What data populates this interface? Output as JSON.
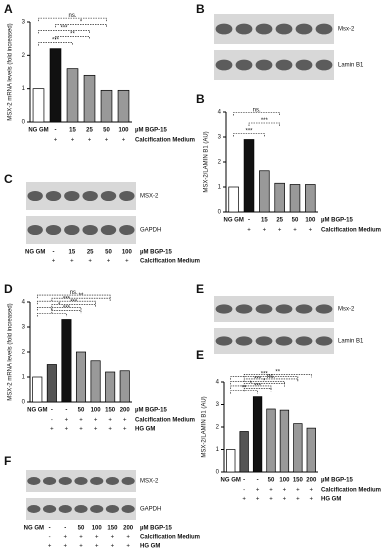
{
  "chart_data": [
    {
      "type": "bar",
      "panel": "A",
      "y_label": "MSX-2 mRNA levels (fold increased)",
      "category_label": "µM BGP-15",
      "categories": [
        "NG GM",
        "-",
        "15",
        "25",
        "50",
        "100"
      ],
      "values": [
        1,
        2.2,
        1.6,
        1.4,
        0.95,
        0.95
      ],
      "colors": [
        "#ffffff",
        "#111111",
        "#999999",
        "#999999",
        "#999999",
        "#999999"
      ],
      "ylim": [
        0,
        3
      ],
      "yticks": [
        0,
        1,
        2,
        3
      ],
      "rows": [
        {
          "name": "Calcification Medium",
          "marks": [
            null,
            "+",
            "+",
            "+",
            "+",
            "+"
          ]
        }
      ],
      "annotations": [
        "***",
        "**",
        "***",
        "*",
        "ns."
      ]
    },
    {
      "type": "bar",
      "panel": "B",
      "y_label": "MSX-2/LAMIN B1 (AU)",
      "category_label": "µM BGP-15",
      "categories": [
        "NG GM",
        "-",
        "15",
        "25",
        "50",
        "100"
      ],
      "values": [
        1,
        2.9,
        1.65,
        1.15,
        1.1,
        1.1
      ],
      "colors": [
        "#ffffff",
        "#111111",
        "#999999",
        "#999999",
        "#999999",
        "#999999"
      ],
      "ylim": [
        0,
        4
      ],
      "yticks": [
        0,
        1,
        2,
        3,
        4
      ],
      "rows": [
        {
          "name": "Calcification Medium",
          "marks": [
            null,
            "+",
            "+",
            "+",
            "+",
            "+"
          ]
        }
      ],
      "annotations": [
        "***",
        "***",
        "ns."
      ]
    },
    {
      "type": "bar",
      "panel": "D",
      "y_label": "MSX-2 mRNA levels (fold increased)",
      "category_label": "µM BGP-15",
      "categories": [
        "NG GM",
        "-",
        "-",
        "50",
        "100",
        "150",
        "200"
      ],
      "values": [
        1,
        1.5,
        3.3,
        2.0,
        1.65,
        1.2,
        1.25
      ],
      "colors": [
        "#ffffff",
        "#555555",
        "#111111",
        "#999999",
        "#999999",
        "#999999",
        "#999999"
      ],
      "ylim": [
        0,
        4
      ],
      "yticks": [
        0,
        1,
        2,
        3,
        4
      ],
      "rows": [
        {
          "name": "Calcification Medium",
          "marks": [
            null,
            "-",
            "+",
            "+",
            "+",
            "+",
            "+"
          ]
        },
        {
          "name": "HG GM",
          "marks": [
            null,
            "+",
            "+",
            "+",
            "+",
            "+",
            "+"
          ]
        }
      ],
      "annotations": [
        "*",
        "***",
        "*",
        "***",
        "***",
        "**",
        "ns."
      ]
    },
    {
      "type": "bar",
      "panel": "E",
      "y_label": "MSX-2/LAMIN B1 (AU)",
      "category_label": "µM BGP-15",
      "categories": [
        "NG GM",
        "-",
        "-",
        "50",
        "100",
        "150",
        "200"
      ],
      "values": [
        1,
        1.8,
        3.35,
        2.8,
        2.75,
        2.15,
        1.95
      ],
      "colors": [
        "#ffffff",
        "#555555",
        "#111111",
        "#999999",
        "#999999",
        "#999999",
        "#999999"
      ],
      "ylim": [
        0,
        4
      ],
      "yticks": [
        0,
        1,
        2,
        3,
        4
      ],
      "rows": [
        {
          "name": "Calcification Medium",
          "marks": [
            null,
            "-",
            "+",
            "+",
            "+",
            "+",
            "+"
          ]
        },
        {
          "name": "HG GM",
          "marks": [
            null,
            "+",
            "+",
            "+",
            "+",
            "+",
            "+"
          ]
        }
      ],
      "annotations": [
        "**",
        "***",
        "*",
        "*",
        "***",
        "ns.",
        "***",
        "**"
      ]
    }
  ],
  "blots": [
    {
      "panel": "B",
      "bands": [
        "Msx-2",
        "Lamin B1"
      ]
    },
    {
      "panel": "C",
      "bands": [
        "MSX-2",
        "GAPDH"
      ],
      "lanes": [
        "NG GM",
        "-",
        "15",
        "25",
        "50",
        "100"
      ],
      "lane_label": "µM BGP-15",
      "rows": [
        {
          "name": "Calcification Medium",
          "marks": [
            null,
            "+",
            "+",
            "+",
            "+",
            "+"
          ]
        }
      ]
    },
    {
      "panel": "E",
      "bands": [
        "Msx-2",
        "Lamin B1"
      ]
    },
    {
      "panel": "F",
      "bands": [
        "MSX-2",
        "GAPDH"
      ],
      "lanes": [
        "NG GM",
        "-",
        "-",
        "50",
        "100",
        "150",
        "200"
      ],
      "lane_label": "µM BGP-15",
      "rows": [
        {
          "name": "Calcification Medium",
          "marks": [
            null,
            "-",
            "+",
            "+",
            "+",
            "+",
            "+"
          ]
        },
        {
          "name": "HG GM",
          "marks": [
            null,
            "+",
            "+",
            "+",
            "+",
            "+",
            "+"
          ]
        }
      ]
    }
  ]
}
